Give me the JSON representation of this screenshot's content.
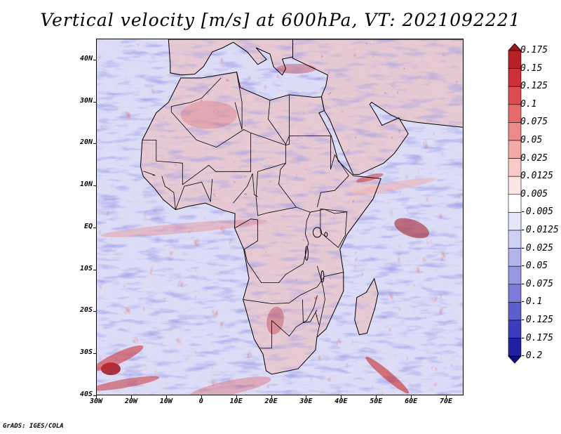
{
  "title": "Vertical velocity [m/s] at 600hPa, VT: 2021092221",
  "credit": "GrADS: IGES/COLA",
  "map": {
    "lon_range": [
      -30,
      75
    ],
    "lat_range": [
      -40,
      45
    ],
    "lat_labels": [
      "40N",
      "30N",
      "20N",
      "10N",
      "EQ",
      "10S",
      "20S",
      "30S",
      "40S"
    ],
    "lat_values": [
      40,
      30,
      20,
      10,
      0,
      -10,
      -20,
      -30,
      -40
    ],
    "lon_labels": [
      "30W",
      "20W",
      "10W",
      "0",
      "10E",
      "20E",
      "30E",
      "40E",
      "50E",
      "60E",
      "70E"
    ],
    "lon_values": [
      -30,
      -20,
      -10,
      0,
      10,
      20,
      30,
      40,
      50,
      60,
      70
    ]
  },
  "colorbar": {
    "labels": [
      "0.175",
      "0.15",
      "0.125",
      "0.1",
      "0.075",
      "0.05",
      "0.025",
      "0.0125",
      "0.005",
      "-0.005",
      "-0.0125",
      "-0.025",
      "-0.05",
      "-0.075",
      "-0.1",
      "-0.125",
      "-0.175",
      "-0.2"
    ],
    "colors": [
      "#a0141e",
      "#b82028",
      "#cc3038",
      "#dc4c50",
      "#e46a6c",
      "#ec8a8a",
      "#f2aaa8",
      "#f8cac8",
      "#fce6e4",
      "#ffffff",
      "#e6e6fa",
      "#cfcff4",
      "#b4b4ec",
      "#9898e2",
      "#7c7cd8",
      "#5e5ecc",
      "#3c3cba",
      "#2020a0",
      "#100c88"
    ]
  },
  "colors": {
    "land_outline": "#000000",
    "upward_motion": "#c82828",
    "downward_motion": "#5a5ad2"
  }
}
